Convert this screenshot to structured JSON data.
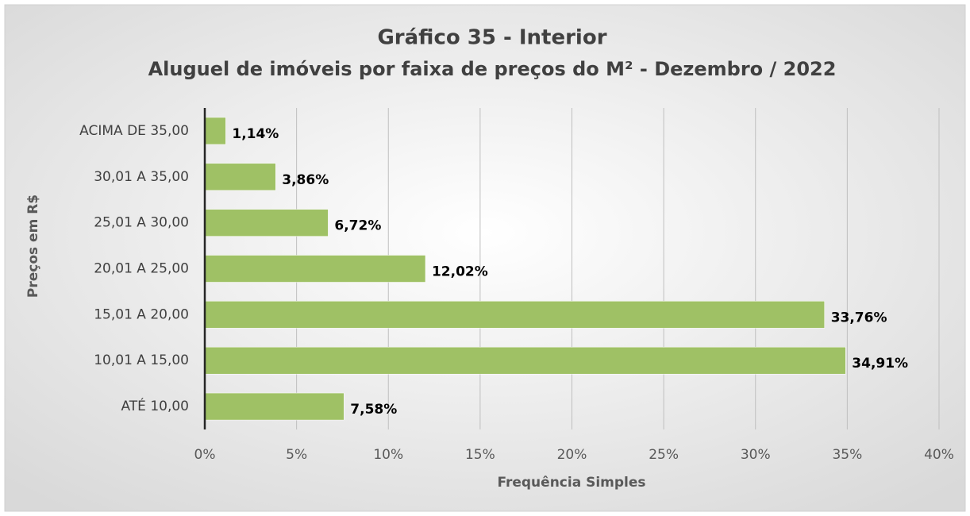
{
  "chart_data": {
    "type": "bar",
    "orientation": "horizontal",
    "title": "Gráfico 35 - Interior",
    "subtitle": "Aluguel de imóveis por faixa de preços do M² - Dezembro / 2022",
    "x_label": "Frequência Simples",
    "y_label": "Preços em R$",
    "categories": [
      "ACIMA DE 35,00",
      "30,01 A 35,00",
      "25,01 A 30,00",
      "20,01 A 25,00",
      "15,01 A 20,00",
      "10,01 A 15,00",
      "ATÉ 10,00"
    ],
    "values": [
      1.14,
      3.86,
      6.72,
      12.02,
      33.76,
      34.91,
      7.58
    ],
    "value_labels": [
      "1,14%",
      "3,86%",
      "6,72%",
      "12,02%",
      "33,76%",
      "34,91%",
      "7,58%"
    ],
    "color": "#9fc165",
    "xlim": [
      0,
      40
    ],
    "xticks": [
      {
        "value": 0,
        "label": "0%"
      },
      {
        "value": 5,
        "label": "5%"
      },
      {
        "value": 10,
        "label": "10%"
      },
      {
        "value": 15,
        "label": "15%"
      },
      {
        "value": 20,
        "label": "20%"
      },
      {
        "value": 25,
        "label": "25%"
      },
      {
        "value": 30,
        "label": "30%"
      },
      {
        "value": 35,
        "label": "35%"
      },
      {
        "value": 40,
        "label": "40%"
      }
    ],
    "grid": true
  }
}
